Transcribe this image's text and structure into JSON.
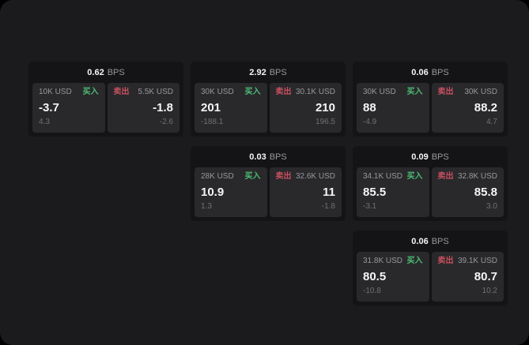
{
  "theme": {
    "page_bg": "#000000",
    "panel_bg": "#1b1b1d",
    "card_bg": "#141416",
    "subcard_bg": "#29292c",
    "accent_green": "#4dbd74",
    "accent_red": "#c8505e",
    "text_primary": "#f5f5f5",
    "text_secondary": "#98989c",
    "text_dim": "#707074"
  },
  "labels": {
    "bps": "BPS",
    "buy": "买入",
    "sell": "卖出"
  },
  "cards": [
    {
      "bps": "0.62",
      "buy": {
        "amount": "10K USD",
        "value": "-3.7",
        "delta": "4.3"
      },
      "sell": {
        "amount": "5.5K USD",
        "value": "-1.8",
        "delta": "-2.6"
      },
      "grid": {
        "row": 1,
        "col": 1
      }
    },
    {
      "bps": "2.92",
      "buy": {
        "amount": "30K USD",
        "value": "201",
        "delta": "-188.1"
      },
      "sell": {
        "amount": "30.1K USD",
        "value": "210",
        "delta": "196.5"
      },
      "grid": {
        "row": 1,
        "col": 2
      }
    },
    {
      "bps": "0.06",
      "buy": {
        "amount": "30K USD",
        "value": "88",
        "delta": "-4.9"
      },
      "sell": {
        "amount": "30K USD",
        "value": "88.2",
        "delta": "4.7"
      },
      "grid": {
        "row": 1,
        "col": 3
      }
    },
    {
      "bps": "0.03",
      "buy": {
        "amount": "28K USD",
        "value": "10.9",
        "delta": "1.3"
      },
      "sell": {
        "amount": "32.6K USD",
        "value": "11",
        "delta": "-1.8"
      },
      "grid": {
        "row": 2,
        "col": 2
      }
    },
    {
      "bps": "0.09",
      "buy": {
        "amount": "34.1K USD",
        "value": "85.5",
        "delta": "-3.1"
      },
      "sell": {
        "amount": "32.8K USD",
        "value": "85.8",
        "delta": "3.0"
      },
      "grid": {
        "row": 2,
        "col": 3
      }
    },
    {
      "bps": "0.06",
      "buy": {
        "amount": "31.8K USD",
        "value": "80.5",
        "delta": "-10.8"
      },
      "sell": {
        "amount": "39.1K USD",
        "value": "80.7",
        "delta": "10.2"
      },
      "grid": {
        "row": 3,
        "col": 3
      }
    }
  ]
}
